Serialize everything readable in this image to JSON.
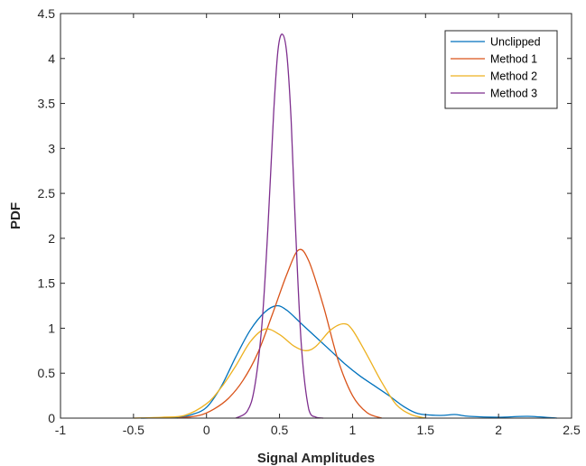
{
  "chart_data": {
    "type": "line",
    "title": "",
    "xlabel": "Signal Amplitudes",
    "ylabel": "PDF",
    "xlim": [
      -1,
      2.5
    ],
    "ylim": [
      0,
      4.5
    ],
    "xticks": [
      -1,
      -0.5,
      0,
      0.5,
      1,
      1.5,
      2,
      2.5
    ],
    "xtick_labels": [
      "-1",
      "-0.5",
      "0",
      "0.5",
      "1",
      "1.5",
      "2",
      "2.5"
    ],
    "yticks": [
      0,
      0.5,
      1,
      1.5,
      2,
      2.5,
      3,
      3.5,
      4,
      4.5
    ],
    "ytick_labels": [
      "0",
      "0.5",
      "1",
      "1.5",
      "2",
      "2.5",
      "3",
      "3.5",
      "4",
      "4.5"
    ],
    "grid": false,
    "legend_position": "top-right",
    "series": [
      {
        "name": "Unclipped",
        "color": "#0072BD",
        "x": [
          -0.45,
          -0.2,
          -0.1,
          0,
          0.1,
          0.2,
          0.3,
          0.4,
          0.48,
          0.55,
          0.65,
          0.75,
          0.85,
          0.95,
          1.05,
          1.15,
          1.25,
          1.35,
          1.45,
          1.6,
          1.7,
          1.8,
          2.0,
          2.2,
          2.4
        ],
        "values": [
          0,
          0.01,
          0.04,
          0.12,
          0.35,
          0.68,
          0.98,
          1.18,
          1.25,
          1.2,
          1.05,
          0.9,
          0.75,
          0.6,
          0.47,
          0.36,
          0.25,
          0.13,
          0.05,
          0.03,
          0.04,
          0.02,
          0.01,
          0.02,
          0
        ]
      },
      {
        "name": "Method 1",
        "color": "#D95319",
        "x": [
          -0.2,
          -0.05,
          0.05,
          0.15,
          0.25,
          0.35,
          0.45,
          0.55,
          0.63,
          0.7,
          0.8,
          0.9,
          1.0,
          1.1,
          1.2
        ],
        "values": [
          0,
          0.03,
          0.1,
          0.22,
          0.42,
          0.72,
          1.15,
          1.6,
          1.87,
          1.75,
          1.25,
          0.65,
          0.25,
          0.06,
          0
        ]
      },
      {
        "name": "Method 2",
        "color": "#EDB120",
        "x": [
          -0.5,
          -0.3,
          -0.15,
          0,
          0.1,
          0.2,
          0.3,
          0.4,
          0.5,
          0.6,
          0.68,
          0.75,
          0.85,
          0.94,
          1.0,
          1.1,
          1.2,
          1.3,
          1.4,
          1.5
        ],
        "values": [
          0,
          0.01,
          0.03,
          0.16,
          0.34,
          0.58,
          0.85,
          0.99,
          0.93,
          0.8,
          0.75,
          0.8,
          0.98,
          1.05,
          0.98,
          0.7,
          0.4,
          0.15,
          0.04,
          0
        ]
      },
      {
        "name": "Method 3",
        "color": "#7E2F8E",
        "x": [
          0.2,
          0.28,
          0.33,
          0.38,
          0.42,
          0.46,
          0.49,
          0.52,
          0.55,
          0.58,
          0.61,
          0.65,
          0.7,
          0.75,
          0.8
        ],
        "values": [
          0,
          0.08,
          0.35,
          1.05,
          2.1,
          3.4,
          4.1,
          4.27,
          4.05,
          3.3,
          2.1,
          0.8,
          0.1,
          0.01,
          0
        ]
      }
    ]
  }
}
